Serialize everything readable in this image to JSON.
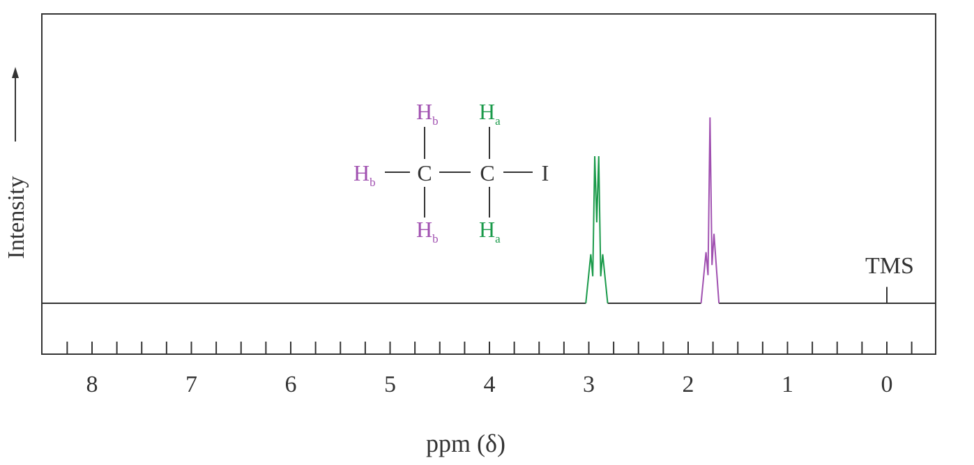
{
  "chart_data": {
    "type": "line",
    "xlabel": "ppm (δ)",
    "ylabel": "Intensity",
    "xlim": [
      8.5,
      -0.5
    ],
    "x_reversed": true,
    "x_ticks": [
      8,
      7,
      6,
      5,
      4,
      3,
      2,
      1,
      0
    ],
    "x_tick_labels": [
      "8",
      "7",
      "6",
      "5",
      "4",
      "3",
      "2",
      "1",
      "0"
    ],
    "minor_tick_step": 0.25,
    "grid": false,
    "series": [
      {
        "color": "#1a9a4a",
        "peaks": [
          {
            "x": 2.98,
            "y": 0.24
          },
          {
            "x": 2.94,
            "y": 0.72
          },
          {
            "x": 2.9,
            "y": 0.72
          },
          {
            "x": 2.86,
            "y": 0.24
          }
        ]
      },
      {
        "color": "#a050b0",
        "peaks": [
          {
            "x": 1.82,
            "y": 0.25
          },
          {
            "x": 1.78,
            "y": 0.91
          },
          {
            "x": 1.74,
            "y": 0.34
          }
        ]
      },
      {
        "color": "#333333",
        "peaks": [
          {
            "x": 0.0,
            "y": 0.08
          }
        ]
      }
    ],
    "annotations": [
      {
        "text": "TMS",
        "x": 0.0
      }
    ]
  },
  "molecule": {
    "carbon_left": "C",
    "carbon_right": "C",
    "iodine": "I",
    "h_b_base": "H",
    "h_b_sub": "b",
    "h_a_base": "H",
    "h_a_sub": "a",
    "color_b": "#a050b0",
    "color_a": "#1a9a4a"
  }
}
